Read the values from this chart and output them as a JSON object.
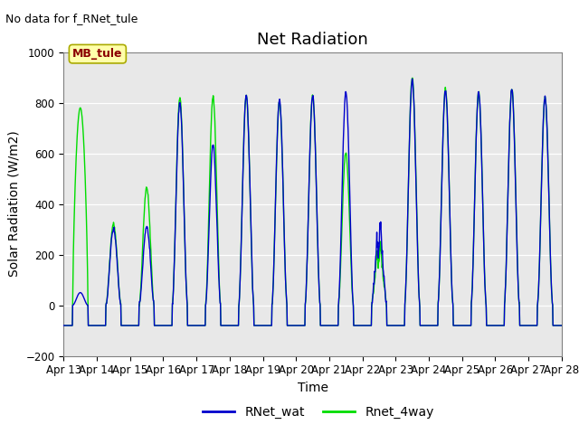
{
  "title": "Net Radiation",
  "xlabel": "Time",
  "ylabel": "Solar Radiation (W/m2)",
  "no_data_text": "No data for f_RNet_tule",
  "legend_label": "MB_tule",
  "ylim": [
    -200,
    1000
  ],
  "xtick_labels": [
    "Apr 13",
    "Apr 14",
    "Apr 15",
    "Apr 16",
    "Apr 17",
    "Apr 18",
    "Apr 19",
    "Apr 20",
    "Apr 21",
    "Apr 22",
    "Apr 23",
    "Apr 24",
    "Apr 25",
    "Apr 26",
    "Apr 27",
    "Apr 28"
  ],
  "line1_label": "RNet_wat",
  "line1_color": "#0000cc",
  "line2_label": "Rnet_4way",
  "line2_color": "#00dd00",
  "bg_color": "#e8e8e8",
  "title_fontsize": 13,
  "axis_fontsize": 10,
  "tick_fontsize": 8.5
}
